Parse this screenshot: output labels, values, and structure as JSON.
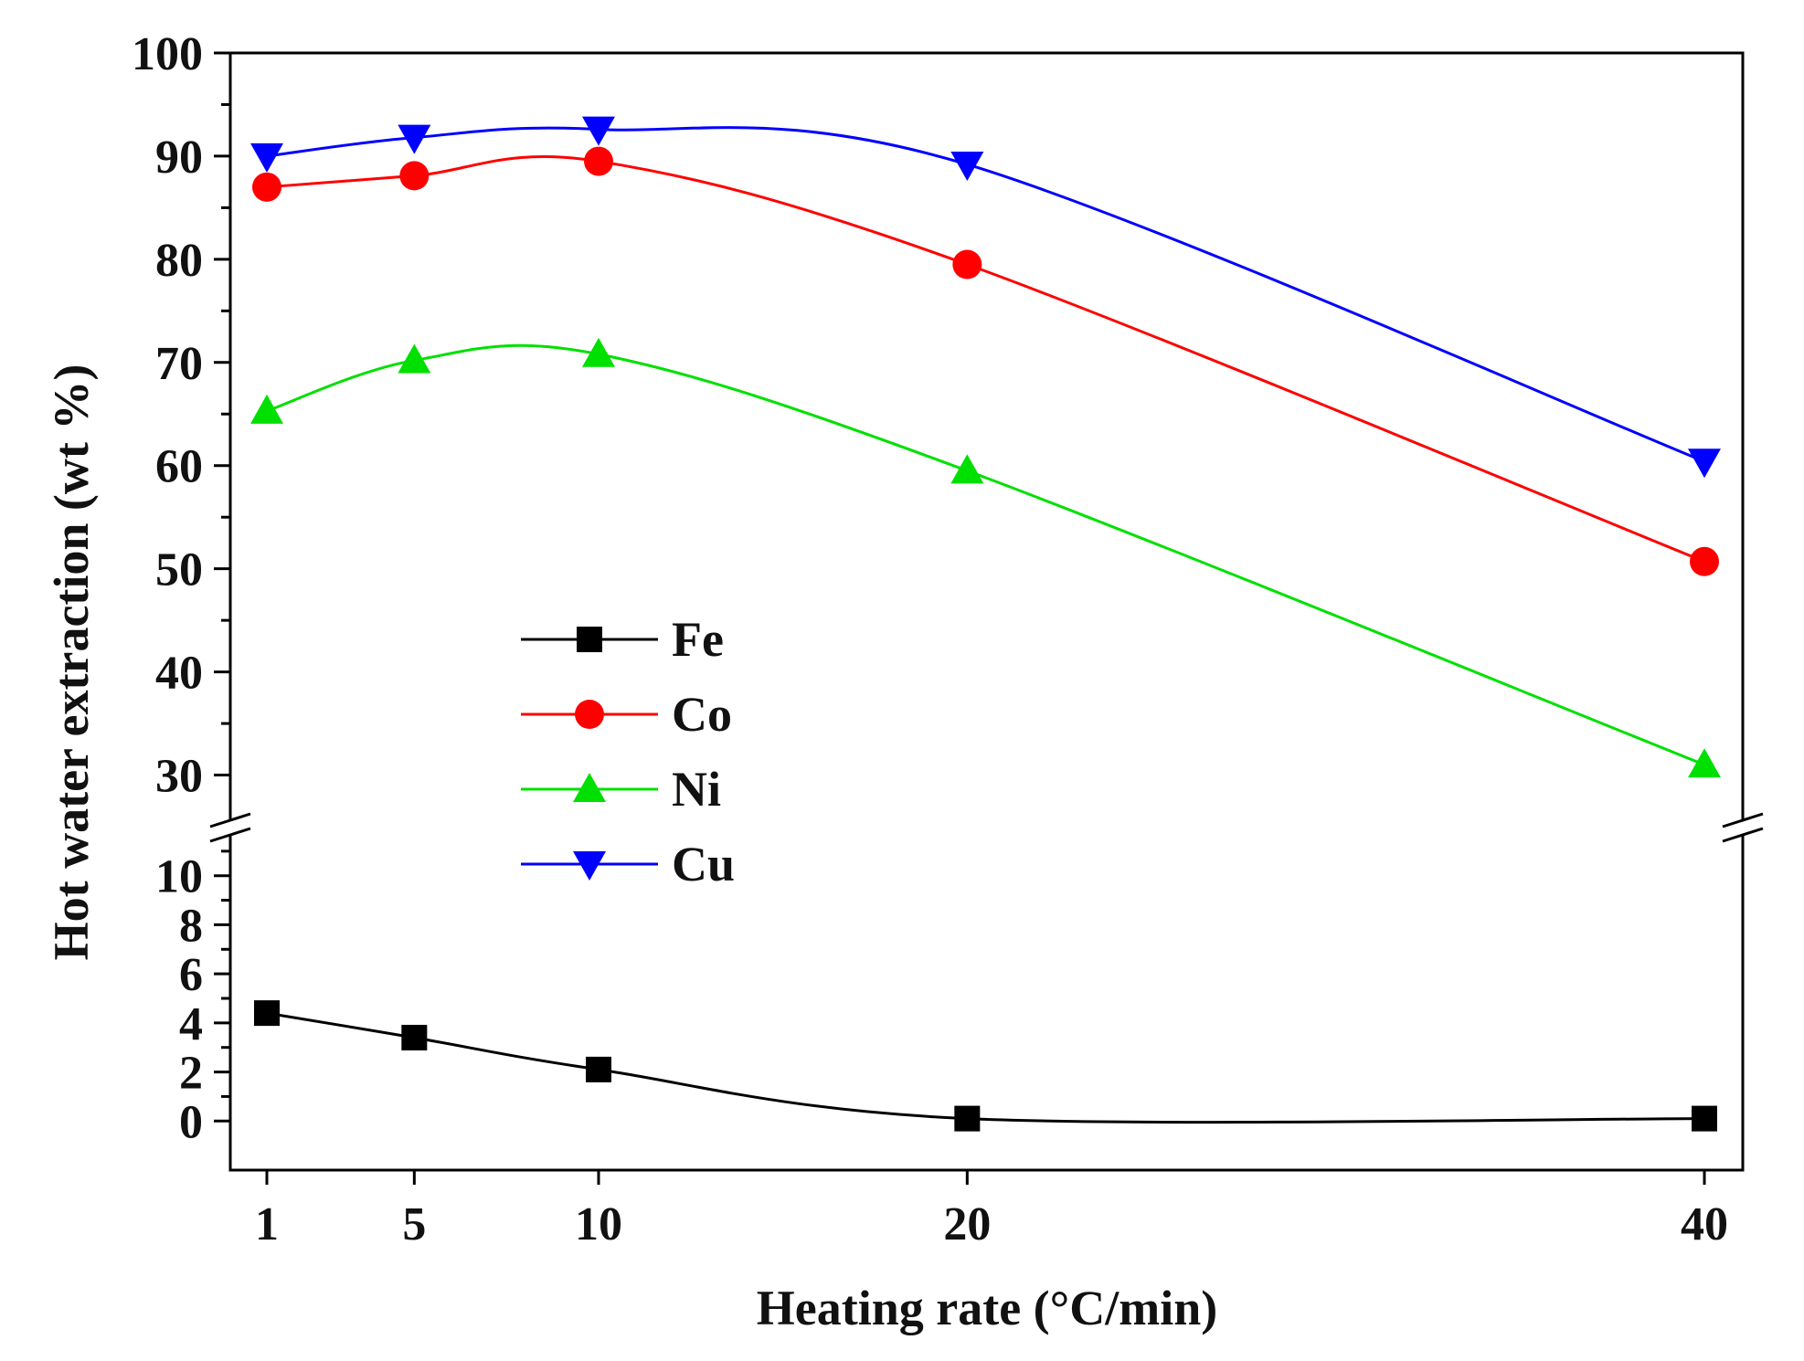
{
  "chart_data": {
    "type": "line",
    "xlabel": "Heating rate (°C/min)",
    "ylabel": "Hot water extraction (wt %)",
    "x": [
      1,
      5,
      10,
      20,
      40
    ],
    "xticks": [
      "1",
      "5",
      "10",
      "20",
      "40"
    ],
    "x_range": [
      0,
      41
    ],
    "y_axis_break": true,
    "y_upper_range": [
      25,
      100
    ],
    "y_upper_ticks": [
      "30",
      "40",
      "50",
      "60",
      "70",
      "80",
      "90",
      "100"
    ],
    "y_lower_range": [
      -2,
      12
    ],
    "y_lower_ticks": [
      "0",
      "2",
      "4",
      "6",
      "8",
      "10"
    ],
    "legend_position": "center-left",
    "series": [
      {
        "name": "Fe",
        "color": "#000000",
        "marker": "square",
        "values": [
          4.4,
          3.4,
          2.1,
          0.1,
          0.1
        ]
      },
      {
        "name": "Co",
        "color": "#ff0000",
        "marker": "circle",
        "values": [
          87.0,
          88.1,
          89.5,
          79.5,
          50.7
        ]
      },
      {
        "name": "Ni",
        "color": "#00e000",
        "marker": "triangle-up",
        "values": [
          65.3,
          70.2,
          70.8,
          59.5,
          31.0
        ]
      },
      {
        "name": "Cu",
        "color": "#0000ff",
        "marker": "triangle-down",
        "values": [
          90.0,
          91.8,
          92.6,
          89.2,
          60.4
        ]
      }
    ]
  }
}
